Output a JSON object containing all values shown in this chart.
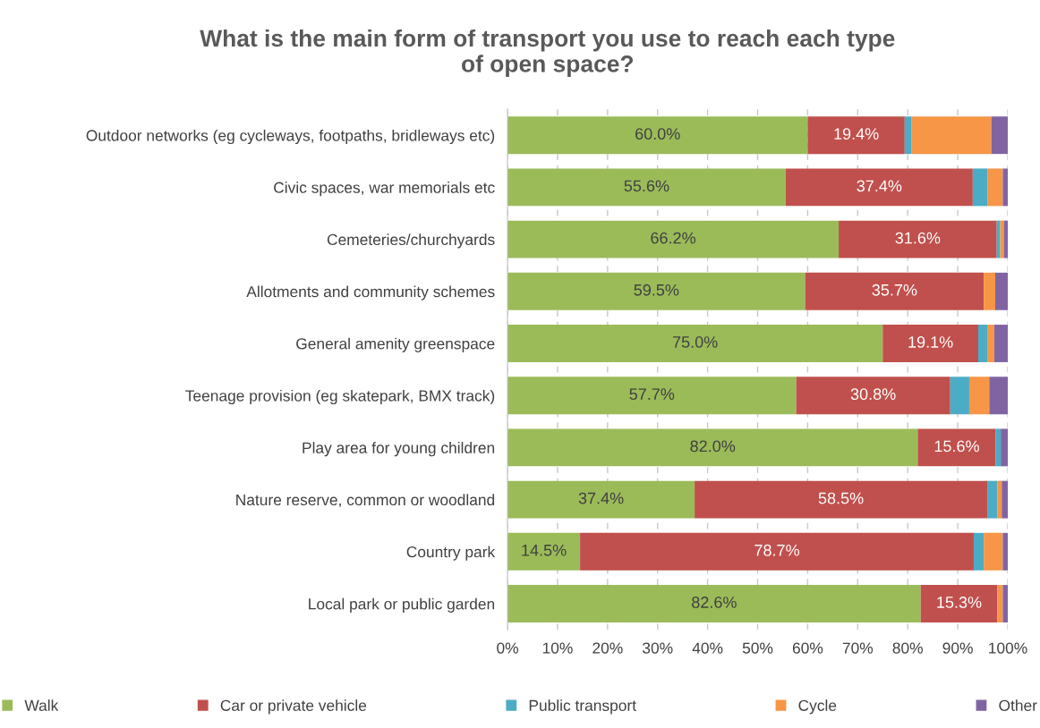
{
  "chart_data": {
    "type": "bar",
    "orientation": "horizontal",
    "stacked": true,
    "title": "What is the main form of transport you use to reach each type\nof open space?",
    "categories": [
      "Outdoor networks (eg cycleways, footpaths, bridleways etc)",
      "Civic spaces, war memorials etc",
      "Cemeteries/churchyards",
      "Allotments and community schemes",
      "General amenity greenspace",
      "Teenage provision (eg skatepark, BMX track)",
      "Play area for young children",
      "Nature reserve, common or woodland",
      "Country park",
      "Local park or public garden"
    ],
    "series": [
      {
        "name": "Walk",
        "color": "#9bbb59",
        "values": [
          60.0,
          55.6,
          66.2,
          59.5,
          75.0,
          57.7,
          82.0,
          37.4,
          14.5,
          82.6
        ],
        "value_labels": [
          "60.0%",
          "55.6%",
          "66.2%",
          "59.5%",
          "75.0%",
          "57.7%",
          "82.0%",
          "37.4%",
          "14.5%",
          "82.6%"
        ]
      },
      {
        "name": "Car or private vehicle",
        "color": "#c0504d",
        "values": [
          19.4,
          37.4,
          31.6,
          35.7,
          19.1,
          30.8,
          15.6,
          58.5,
          78.7,
          15.3
        ],
        "value_labels": [
          "19.4%",
          "37.4%",
          "31.6%",
          "35.7%",
          "19.1%",
          "30.8%",
          "15.6%",
          "58.5%",
          "78.7%",
          "15.3%"
        ]
      },
      {
        "name": "Public transport",
        "color": "#4bacc6",
        "values": [
          1.3,
          3.0,
          0.7,
          0,
          1.8,
          3.8,
          1.0,
          2.0,
          2.0,
          0
        ]
      },
      {
        "name": "Cycle",
        "color": "#f79646",
        "values": [
          16.0,
          3.0,
          0.7,
          2.3,
          1.4,
          4.0,
          0,
          0.9,
          3.8,
          1.1
        ]
      },
      {
        "name": "Other",
        "color": "#8064a2",
        "values": [
          3.3,
          1.0,
          0.8,
          2.5,
          2.7,
          3.7,
          1.4,
          1.2,
          1.0,
          1.0
        ]
      }
    ],
    "xlim": [
      0,
      100
    ],
    "xticks": [
      {
        "value": 0,
        "label": "0%"
      },
      {
        "value": 10,
        "label": "10%"
      },
      {
        "value": 20,
        "label": "20%"
      },
      {
        "value": 30,
        "label": "30%"
      },
      {
        "value": 40,
        "label": "40%"
      },
      {
        "value": 50,
        "label": "50%"
      },
      {
        "value": 60,
        "label": "60%"
      },
      {
        "value": 70,
        "label": "70%"
      },
      {
        "value": 80,
        "label": "80%"
      },
      {
        "value": 90,
        "label": "90%"
      },
      {
        "value": 100,
        "label": "100%"
      }
    ],
    "grid": "x",
    "legend": "bottom"
  }
}
